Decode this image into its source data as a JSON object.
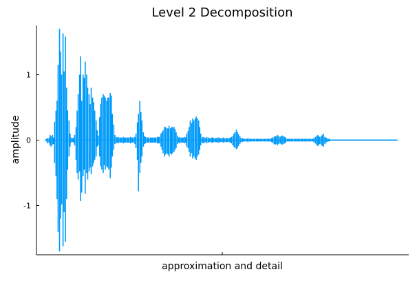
{
  "chart_data": {
    "type": "line",
    "title": "Level 2 Decomposition",
    "xlabel": "approximation and detail",
    "ylabel": "amplitude",
    "ylim": [
      -1.75,
      1.75
    ],
    "yticks": [
      {
        "value": 1,
        "label": "1"
      },
      {
        "value": 0,
        "label": "0"
      },
      {
        "value": -1,
        "label": "-1"
      }
    ],
    "grid": false,
    "legend": "none",
    "color": "#009AFA",
    "series": [
      {
        "x": [
          0.0,
          0.003,
          0.006,
          0.01,
          0.013,
          0.016,
          0.02,
          0.023,
          0.026,
          0.03,
          0.033,
          0.036,
          0.04,
          0.043,
          0.046,
          0.05,
          0.053,
          0.057,
          0.06,
          0.063,
          0.067,
          0.07,
          0.073,
          0.077,
          0.08,
          0.083,
          0.087,
          0.09,
          0.093,
          0.097,
          0.1,
          0.103,
          0.107,
          0.11,
          0.113,
          0.117,
          0.12,
          0.124,
          0.127,
          0.13,
          0.134,
          0.137,
          0.14,
          0.144,
          0.147,
          0.15,
          0.154,
          0.157,
          0.16,
          0.164,
          0.167,
          0.17,
          0.174,
          0.177,
          0.18,
          0.184,
          0.187,
          0.19,
          0.194,
          0.197,
          0.201,
          0.204,
          0.207,
          0.211,
          0.214,
          0.217,
          0.221,
          0.224,
          0.227,
          0.231,
          0.234,
          0.237,
          0.241,
          0.244,
          0.247,
          0.251,
          0.254,
          0.257,
          0.261,
          0.264,
          0.268,
          0.271,
          0.274,
          0.278,
          0.281,
          0.284,
          0.288,
          0.291,
          0.294,
          0.298,
          0.301,
          0.304,
          0.308,
          0.311,
          0.314,
          0.318,
          0.321,
          0.324,
          0.328,
          0.331,
          0.334,
          0.338,
          0.341,
          0.345,
          0.348,
          0.351,
          0.355,
          0.358,
          0.361,
          0.365,
          0.368,
          0.371,
          0.375,
          0.378,
          0.381,
          0.385,
          0.388,
          0.391,
          0.395,
          0.398,
          0.401,
          0.405,
          0.408,
          0.411,
          0.415,
          0.418,
          0.421,
          0.425,
          0.428,
          0.431,
          0.435,
          0.438,
          0.441,
          0.445,
          0.448,
          0.452,
          0.455,
          0.458,
          0.462,
          0.465,
          0.468,
          0.472,
          0.475,
          0.478,
          0.482,
          0.485,
          0.488,
          0.492,
          0.495,
          0.498,
          0.502,
          0.505,
          0.508,
          0.512,
          0.515,
          0.518,
          0.522,
          0.525,
          0.528,
          0.532,
          0.535,
          0.538,
          0.542,
          0.545,
          0.548,
          0.552,
          0.555,
          0.559,
          0.562,
          0.565,
          0.569,
          0.572,
          0.575,
          0.579,
          0.582,
          0.585,
          0.589,
          0.592,
          0.595,
          0.599,
          0.602,
          0.605,
          0.609,
          0.612,
          0.615,
          0.619,
          0.622,
          0.625,
          0.629,
          0.632,
          0.635,
          0.639,
          0.642,
          0.645,
          0.649,
          0.652,
          0.655,
          0.659,
          0.662,
          0.666,
          0.669,
          0.672,
          0.676,
          0.679,
          0.682,
          0.686,
          0.689,
          0.692,
          0.696,
          0.699,
          0.702,
          0.706,
          0.709,
          0.712,
          0.716,
          0.719,
          0.722,
          0.726,
          0.729,
          0.732,
          0.736,
          0.739,
          0.742,
          0.746,
          0.749,
          0.752,
          0.756,
          0.759,
          0.762,
          0.766,
          0.769,
          0.773,
          0.776,
          0.779,
          0.783,
          0.786,
          0.789,
          0.793,
          0.796,
          0.799,
          0.803,
          0.806,
          0.809,
          0.813,
          0.816,
          0.819,
          0.823,
          0.826,
          0.829,
          0.833,
          0.836,
          0.839,
          0.843,
          0.846,
          0.849,
          0.853,
          0.856,
          0.859,
          0.863,
          0.866,
          0.869,
          0.873,
          0.876,
          0.88,
          0.883,
          0.886,
          0.89,
          0.893,
          0.896,
          0.9,
          0.903,
          0.906,
          0.91,
          0.913,
          0.916,
          0.92,
          0.923,
          0.926,
          0.93,
          0.933,
          0.936,
          0.94,
          0.943,
          0.946,
          0.95,
          0.953,
          0.956,
          0.96,
          0.963,
          0.966,
          0.97,
          0.973,
          0.976,
          0.98,
          0.983,
          0.987,
          0.99,
          0.993,
          0.997,
          1.0
        ],
        "ymax": [
          0.01,
          0.02,
          0.03,
          0.03,
          0.08,
          0.06,
          0.08,
          0.04,
          0.28,
          0.45,
          0.6,
          1.15,
          1.7,
          1.35,
          1.0,
          1.63,
          1.05,
          1.58,
          0.8,
          0.45,
          0.3,
          0.1,
          0.04,
          0.03,
          0.04,
          0.08,
          0.2,
          0.45,
          0.7,
          1.0,
          1.28,
          0.6,
          1.0,
          0.95,
          1.2,
          1.0,
          0.8,
          0.7,
          0.55,
          0.8,
          0.65,
          0.58,
          0.45,
          0.3,
          0.15,
          0.07,
          0.35,
          0.55,
          0.65,
          0.7,
          0.68,
          0.65,
          0.6,
          0.65,
          0.65,
          0.72,
          0.68,
          0.4,
          0.24,
          0.08,
          0.05,
          0.04,
          0.05,
          0.04,
          0.04,
          0.04,
          0.05,
          0.04,
          0.04,
          0.04,
          0.04,
          0.04,
          0.05,
          0.04,
          0.04,
          0.04,
          0.05,
          0.1,
          0.27,
          0.4,
          0.6,
          0.43,
          0.3,
          0.12,
          0.06,
          0.05,
          0.04,
          0.04,
          0.04,
          0.04,
          0.04,
          0.04,
          0.04,
          0.04,
          0.04,
          0.05,
          0.05,
          0.05,
          0.1,
          0.12,
          0.15,
          0.2,
          0.2,
          0.18,
          0.18,
          0.22,
          0.18,
          0.2,
          0.2,
          0.2,
          0.17,
          0.12,
          0.07,
          0.04,
          0.05,
          0.04,
          0.04,
          0.04,
          0.05,
          0.04,
          0.1,
          0.14,
          0.2,
          0.3,
          0.26,
          0.33,
          0.3,
          0.33,
          0.36,
          0.33,
          0.3,
          0.2,
          0.1,
          0.04,
          0.05,
          0.04,
          0.03,
          0.05,
          0.04,
          0.03,
          0.03,
          0.04,
          0.04,
          0.03,
          0.03,
          0.03,
          0.04,
          0.04,
          0.03,
          0.03,
          0.03,
          0.04,
          0.03,
          0.03,
          0.03,
          0.03,
          0.03,
          0.04,
          0.05,
          0.06,
          0.1,
          0.12,
          0.16,
          0.12,
          0.09,
          0.06,
          0.03,
          0.03,
          0.02,
          0.02,
          0.02,
          0.02,
          0.03,
          0.02,
          0.02,
          0.02,
          0.02,
          0.02,
          0.02,
          0.02,
          0.02,
          0.02,
          0.02,
          0.02,
          0.02,
          0.02,
          0.02,
          0.02,
          0.02,
          0.02,
          0.02,
          0.02,
          0.03,
          0.04,
          0.05,
          0.06,
          0.06,
          0.08,
          0.06,
          0.05,
          0.06,
          0.07,
          0.06,
          0.05,
          0.04,
          0.02,
          0.02,
          0.02,
          0.02,
          0.02,
          0.02,
          0.02,
          0.02,
          0.02,
          0.02,
          0.02,
          0.02,
          0.02,
          0.02,
          0.02,
          0.02,
          0.02,
          0.02,
          0.02,
          0.02,
          0.02,
          0.02,
          0.02,
          0.03,
          0.05,
          0.06,
          0.08,
          0.06,
          0.05,
          0.06,
          0.08,
          0.1,
          0.05,
          0.04,
          0.03,
          0.02,
          0.02,
          0.01,
          0.01,
          0.01,
          0.01,
          0.01,
          0.01,
          0.01,
          0.01,
          0.01,
          0.01,
          0.01,
          0.01,
          0.01,
          0.01,
          0.01,
          0.01,
          0.01,
          0.01,
          0.01,
          0.01,
          0.01,
          0.01,
          0.01,
          0.01,
          0.01,
          0.01,
          0.01,
          0.01,
          0.01,
          0.01,
          0.01,
          0.01,
          0.01,
          0.01,
          0.01,
          0.01,
          0.01,
          0.01,
          0.01,
          0.01,
          0.01,
          0.01,
          0.01,
          0.01,
          0.01,
          0.01,
          0.01,
          0.01,
          0.01,
          0.01,
          0.01,
          0.01,
          0.01,
          0.01,
          0.01,
          0.01,
          0.01
        ],
        "ymin": [
          -0.01,
          -0.02,
          -0.05,
          -0.04,
          -0.08,
          -0.1,
          -0.07,
          -0.06,
          -0.35,
          -0.55,
          -0.9,
          -1.4,
          -1.7,
          -1.2,
          -0.98,
          -1.62,
          -1.1,
          -1.55,
          -0.9,
          -0.45,
          -0.25,
          -0.1,
          -0.04,
          -0.03,
          -0.04,
          -0.08,
          -0.3,
          -0.5,
          -0.6,
          -0.48,
          -0.93,
          -0.8,
          -0.55,
          -0.45,
          -0.82,
          -0.5,
          -0.6,
          -0.48,
          -0.42,
          -0.52,
          -0.4,
          -0.35,
          -0.3,
          -0.25,
          -0.1,
          -0.08,
          -0.25,
          -0.4,
          -0.45,
          -0.5,
          -0.38,
          -0.45,
          -0.4,
          -0.42,
          -0.45,
          -0.58,
          -0.42,
          -0.25,
          -0.15,
          -0.06,
          -0.05,
          -0.04,
          -0.05,
          -0.04,
          -0.04,
          -0.04,
          -0.05,
          -0.04,
          -0.04,
          -0.04,
          -0.04,
          -0.04,
          -0.05,
          -0.04,
          -0.04,
          -0.04,
          -0.06,
          -0.12,
          -0.3,
          -0.78,
          -0.5,
          -0.35,
          -0.25,
          -0.1,
          -0.06,
          -0.05,
          -0.04,
          -0.04,
          -0.04,
          -0.04,
          -0.04,
          -0.04,
          -0.04,
          -0.04,
          -0.04,
          -0.05,
          -0.05,
          -0.05,
          -0.1,
          -0.15,
          -0.2,
          -0.25,
          -0.22,
          -0.2,
          -0.22,
          -0.25,
          -0.2,
          -0.22,
          -0.2,
          -0.18,
          -0.15,
          -0.12,
          -0.06,
          -0.04,
          -0.05,
          -0.04,
          -0.04,
          -0.04,
          -0.05,
          -0.04,
          -0.1,
          -0.12,
          -0.18,
          -0.25,
          -0.2,
          -0.28,
          -0.25,
          -0.28,
          -0.3,
          -0.25,
          -0.22,
          -0.15,
          -0.08,
          -0.04,
          -0.05,
          -0.04,
          -0.03,
          -0.05,
          -0.04,
          -0.03,
          -0.03,
          -0.04,
          -0.04,
          -0.03,
          -0.03,
          -0.03,
          -0.04,
          -0.04,
          -0.03,
          -0.03,
          -0.03,
          -0.04,
          -0.03,
          -0.03,
          -0.03,
          -0.03,
          -0.03,
          -0.04,
          -0.05,
          -0.08,
          -0.1,
          -0.12,
          -0.14,
          -0.12,
          -0.09,
          -0.06,
          -0.03,
          -0.03,
          -0.02,
          -0.02,
          -0.02,
          -0.02,
          -0.03,
          -0.02,
          -0.02,
          -0.02,
          -0.02,
          -0.02,
          -0.02,
          -0.02,
          -0.02,
          -0.02,
          -0.02,
          -0.02,
          -0.02,
          -0.02,
          -0.02,
          -0.02,
          -0.02,
          -0.02,
          -0.02,
          -0.02,
          -0.03,
          -0.04,
          -0.06,
          -0.07,
          -0.06,
          -0.08,
          -0.06,
          -0.05,
          -0.06,
          -0.07,
          -0.06,
          -0.05,
          -0.04,
          -0.02,
          -0.02,
          -0.02,
          -0.02,
          -0.02,
          -0.02,
          -0.02,
          -0.02,
          -0.02,
          -0.02,
          -0.02,
          -0.02,
          -0.02,
          -0.02,
          -0.02,
          -0.02,
          -0.02,
          -0.02,
          -0.02,
          -0.02,
          -0.02,
          -0.02,
          -0.02,
          -0.03,
          -0.05,
          -0.07,
          -0.09,
          -0.07,
          -0.06,
          -0.07,
          -0.09,
          -0.1,
          -0.06,
          -0.04,
          -0.03,
          -0.02,
          -0.02,
          -0.01,
          -0.01,
          -0.01,
          -0.01,
          -0.01,
          -0.01,
          -0.01,
          -0.01,
          -0.01,
          -0.01,
          -0.01,
          -0.01,
          -0.01,
          -0.01,
          -0.01,
          -0.01,
          -0.01,
          -0.01,
          -0.01,
          -0.01,
          -0.01,
          -0.01,
          -0.01,
          -0.01,
          -0.01,
          -0.01,
          -0.01,
          -0.01,
          -0.01,
          -0.01,
          -0.01,
          -0.01,
          -0.01,
          -0.01,
          -0.01,
          -0.01,
          -0.01,
          -0.01,
          -0.01,
          -0.01,
          -0.01,
          -0.01,
          -0.01,
          -0.01,
          -0.01,
          -0.01,
          -0.01,
          -0.01,
          -0.01,
          -0.01,
          -0.01,
          -0.01,
          -0.01,
          -0.01,
          -0.01,
          -0.01,
          -0.01
        ]
      }
    ]
  }
}
